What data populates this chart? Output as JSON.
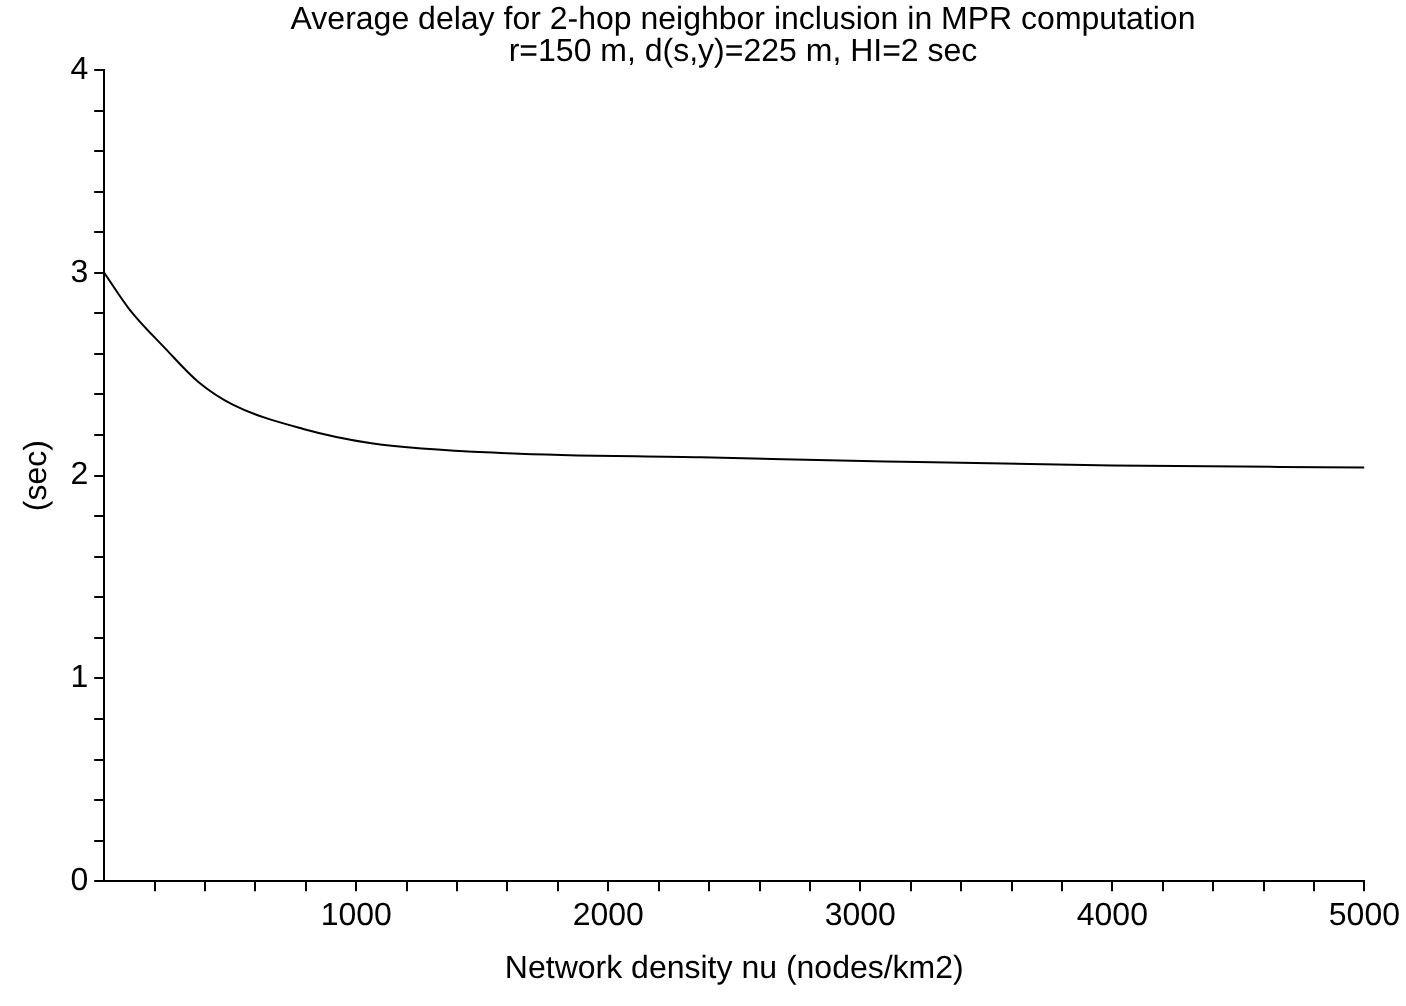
{
  "chart_data": {
    "type": "line",
    "title": "Average delay for 2-hop neighbor inclusion in MPR computation",
    "subtitle": "r=150 m, d(s,y)=225 m, HI=2 sec",
    "xlabel": "Network density nu (nodes/km2)",
    "ylabel": "(sec)",
    "x": [
      0,
      100,
      240,
      375,
      510,
      790,
      1060,
      1600,
      2370,
      3100,
      4000,
      5000
    ],
    "series": [
      {
        "color": "#000000",
        "values": [
          3.0,
          2.82,
          2.63,
          2.46,
          2.35,
          2.23,
          2.16,
          2.11,
          2.09,
          2.07,
          2.05,
          2.04
        ]
      }
    ],
    "xlim": [
      0,
      5000
    ],
    "xticks": [
      {
        "value": 200,
        "label": null
      },
      {
        "value": 400,
        "label": null
      },
      {
        "value": 600,
        "label": null
      },
      {
        "value": 800,
        "label": null
      },
      1000,
      {
        "value": 1200,
        "label": null
      },
      {
        "value": 1400,
        "label": null
      },
      {
        "value": 1600,
        "label": null
      },
      {
        "value": 1800,
        "label": null
      },
      2000,
      {
        "value": 2200,
        "label": null
      },
      {
        "value": 2400,
        "label": null
      },
      {
        "value": 2600,
        "label": null
      },
      {
        "value": 2800,
        "label": null
      },
      3000,
      {
        "value": 3200,
        "label": null
      },
      {
        "value": 3400,
        "label": null
      },
      {
        "value": 3600,
        "label": null
      },
      {
        "value": 3800,
        "label": null
      },
      4000,
      {
        "value": 4200,
        "label": null
      },
      {
        "value": 4400,
        "label": null
      },
      {
        "value": 4600,
        "label": null
      },
      {
        "value": 4800,
        "label": null
      },
      5000
    ],
    "ylim": [
      0,
      4
    ],
    "yticks": [
      0,
      {
        "value": 0.2,
        "label": null
      },
      {
        "value": 0.4,
        "label": null
      },
      {
        "value": 0.6,
        "label": null
      },
      {
        "value": 0.8,
        "label": null
      },
      1,
      {
        "value": 1.2,
        "label": null
      },
      {
        "value": 1.4,
        "label": null
      },
      {
        "value": 1.6,
        "label": null
      },
      {
        "value": 1.8,
        "label": null
      },
      2,
      {
        "value": 2.2,
        "label": null
      },
      {
        "value": 2.4,
        "label": null
      },
      {
        "value": 2.6,
        "label": null
      },
      {
        "value": 2.8,
        "label": null
      },
      3,
      {
        "value": 3.2,
        "label": null
      },
      {
        "value": 3.4,
        "label": null
      },
      {
        "value": 3.6,
        "label": null
      },
      {
        "value": 3.8,
        "label": null
      },
      4
    ],
    "grid": false,
    "legend": false,
    "marker": "none",
    "line_style": "solid"
  }
}
